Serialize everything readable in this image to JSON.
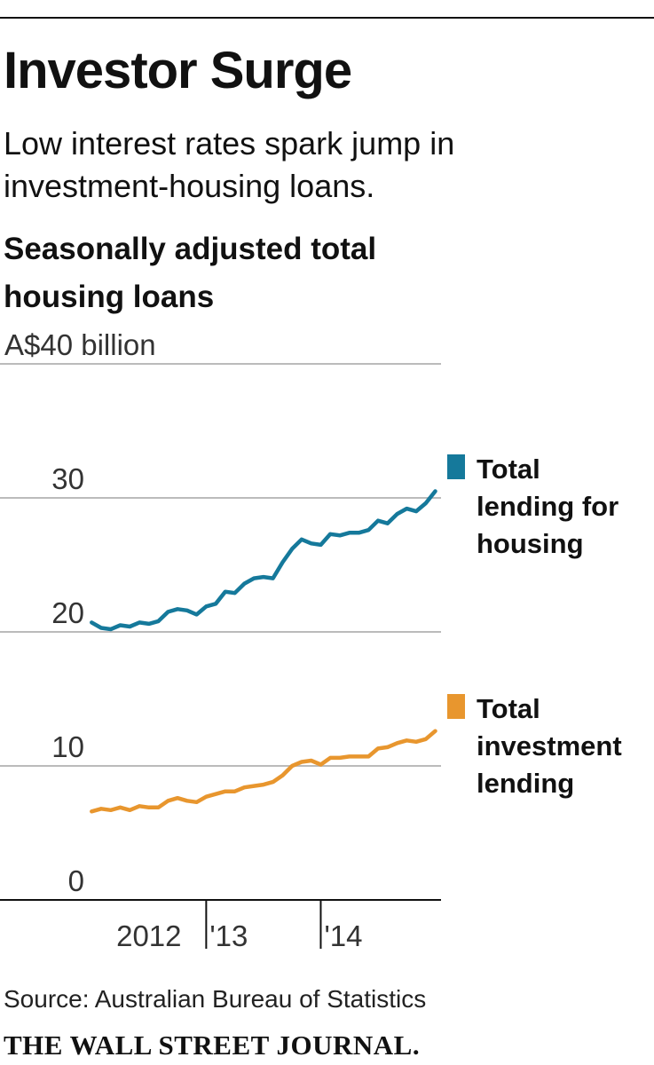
{
  "chart_data": {
    "type": "line",
    "title": "Investor Surge",
    "subtitle": "Low interest rates spark jump in investment-housing loans.",
    "description": "Seasonally adjusted total housing loans",
    "source": "Source: Australian Bureau of Statistics",
    "x": [
      2012,
      2012.083,
      2012.167,
      2012.25,
      2012.333,
      2012.417,
      2012.5,
      2012.583,
      2012.667,
      2012.75,
      2012.833,
      2012.917,
      2013,
      2013.083,
      2013.167,
      2013.25,
      2013.333,
      2013.417,
      2013.5,
      2013.583,
      2013.667,
      2013.75,
      2013.833,
      2013.917,
      2014,
      2014.083,
      2014.167,
      2014.25,
      2014.333,
      2014.417,
      2014.5,
      2014.583,
      2014.667,
      2014.75,
      2014.833,
      2014.917,
      2015
    ],
    "series": [
      {
        "name": "Total lending for housing",
        "color": "#15799b",
        "values": [
          20.7,
          20.3,
          20.2,
          20.5,
          20.4,
          20.7,
          20.6,
          20.8,
          21.5,
          21.7,
          21.6,
          21.3,
          21.9,
          22.1,
          23.0,
          22.9,
          23.6,
          24.0,
          24.1,
          24.0,
          25.2,
          26.2,
          26.9,
          26.6,
          26.5,
          27.3,
          27.2,
          27.4,
          27.4,
          27.6,
          28.3,
          28.1,
          28.8,
          29.2,
          29.0,
          29.6,
          30.5
        ]
      },
      {
        "name": "Total investment lending",
        "color": "#e8962e",
        "values": [
          6.6,
          6.8,
          6.7,
          6.9,
          6.7,
          7.0,
          6.9,
          6.9,
          7.4,
          7.6,
          7.4,
          7.3,
          7.7,
          7.9,
          8.1,
          8.1,
          8.4,
          8.5,
          8.6,
          8.8,
          9.3,
          10.0,
          10.3,
          10.4,
          10.1,
          10.6,
          10.6,
          10.7,
          10.7,
          10.7,
          11.3,
          11.4,
          11.7,
          11.9,
          11.8,
          12.0,
          12.6
        ]
      }
    ],
    "xlim": [
      2011.2,
      2015.05
    ],
    "xticks": [
      {
        "value": 2012.5,
        "label": "2012"
      },
      {
        "value": 2013,
        "label": "'13"
      },
      {
        "value": 2014,
        "label": "'14"
      }
    ],
    "ylim": [
      0,
      40
    ],
    "yticks": [
      0,
      10,
      20,
      30,
      {
        "value": 40,
        "label": "A$40 billion"
      }
    ],
    "grid": true
  },
  "footer": {
    "logo": "THE WALL STREET JOURNAL."
  }
}
